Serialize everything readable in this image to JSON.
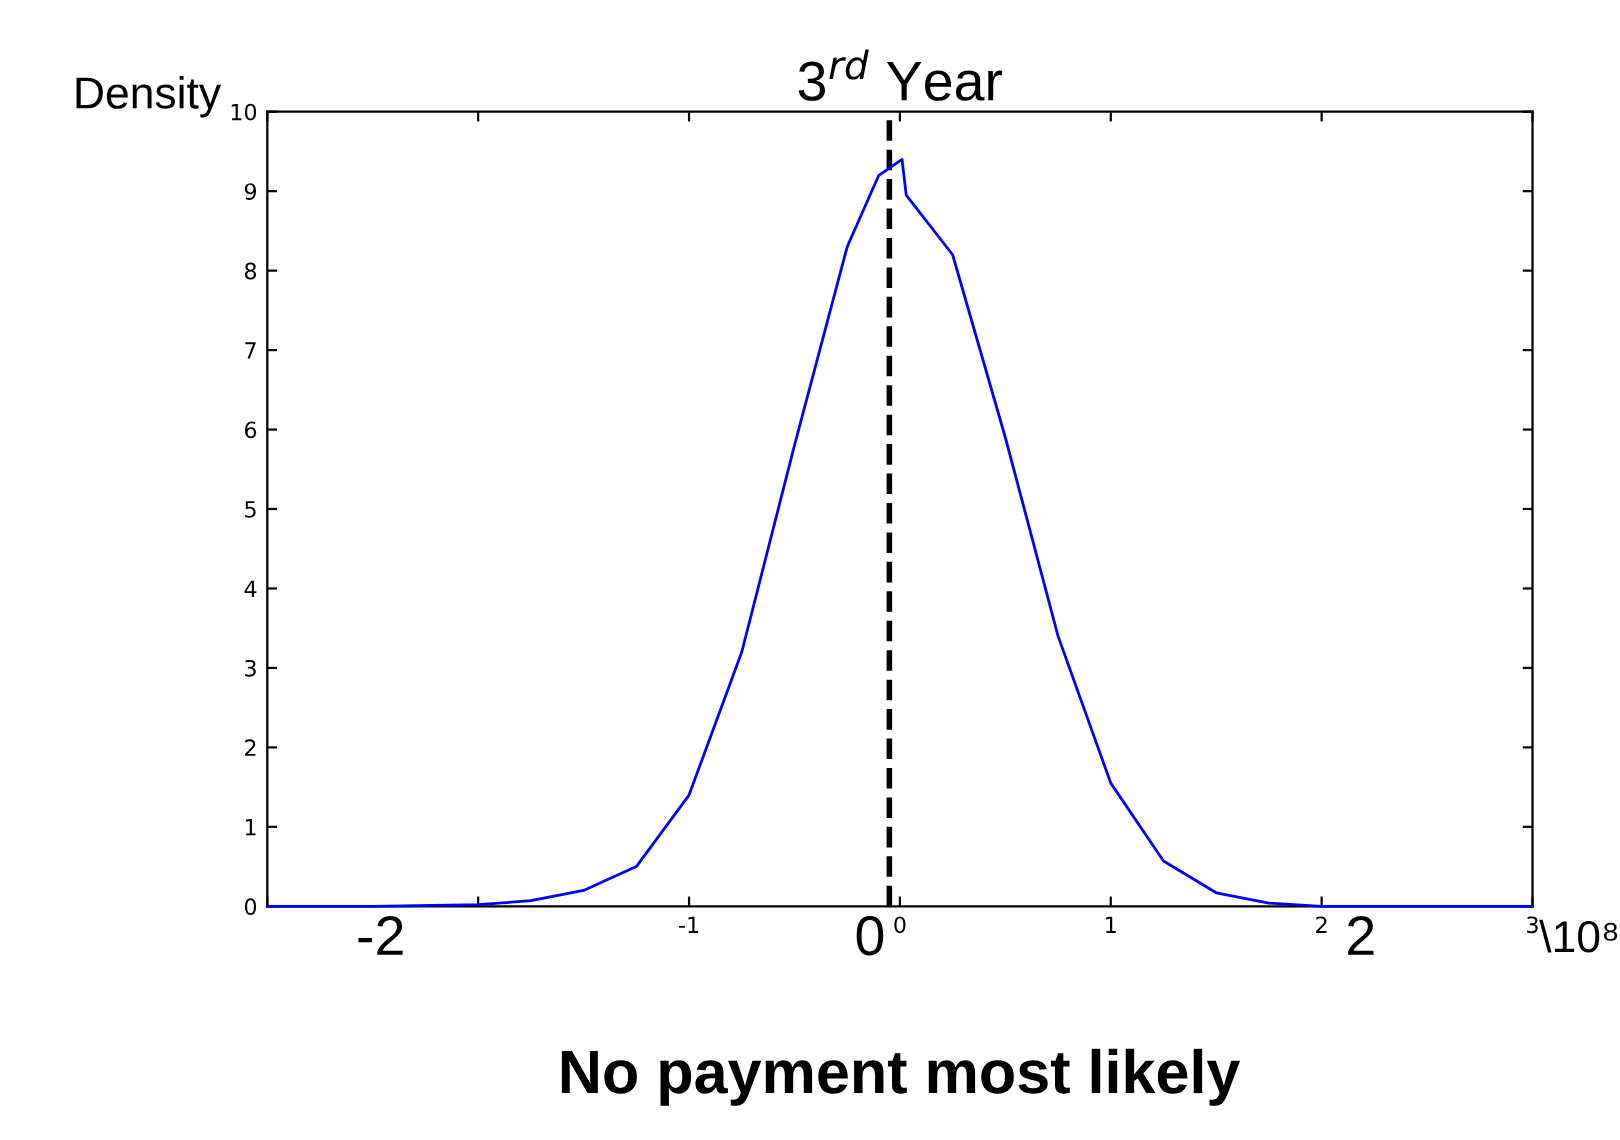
{
  "chart_data": {
    "type": "line",
    "title": "3$^{rd}$ Year",
    "ylabel": "Density",
    "x": [
      -3,
      -2.5,
      -2,
      -1.75,
      -1.5,
      -1.25,
      -1,
      -0.75,
      -0.5,
      -0.25,
      -0.1,
      0.01,
      0.03,
      0.25,
      0.5,
      0.75,
      1,
      1.25,
      1.5,
      1.75,
      2,
      2.5,
      3
    ],
    "series": [
      {
        "color": "#0000ff",
        "values": [
          0,
          0,
          0.02,
          0.07,
          0.2,
          0.5,
          1.4,
          3.2,
          5.8,
          8.3,
          9.2,
          9.4,
          8.95,
          8.2,
          5.9,
          3.4,
          1.55,
          0.57,
          0.17,
          0.04,
          0,
          0,
          0
        ]
      }
    ],
    "xlim": [
      -3,
      3
    ],
    "ylim": [
      0,
      10
    ],
    "xticks": [
      {
        "value": -3,
        "label": null
      },
      {
        "value": -2,
        "label": null
      },
      -1,
      0,
      1,
      2,
      3
    ],
    "yticks": [
      0,
      1,
      2,
      3,
      4,
      5,
      6,
      7,
      8,
      9,
      10
    ],
    "ref_lines": [
      {
        "axis": "x",
        "value": -0.05,
        "color": "#000000",
        "line_style": "dashed"
      }
    ],
    "annotations": [
      "-2",
      "0",
      "2",
      "\\10⁸",
      "No payment most likely"
    ],
    "grid": false,
    "marker": "none",
    "line_style": "solid"
  }
}
